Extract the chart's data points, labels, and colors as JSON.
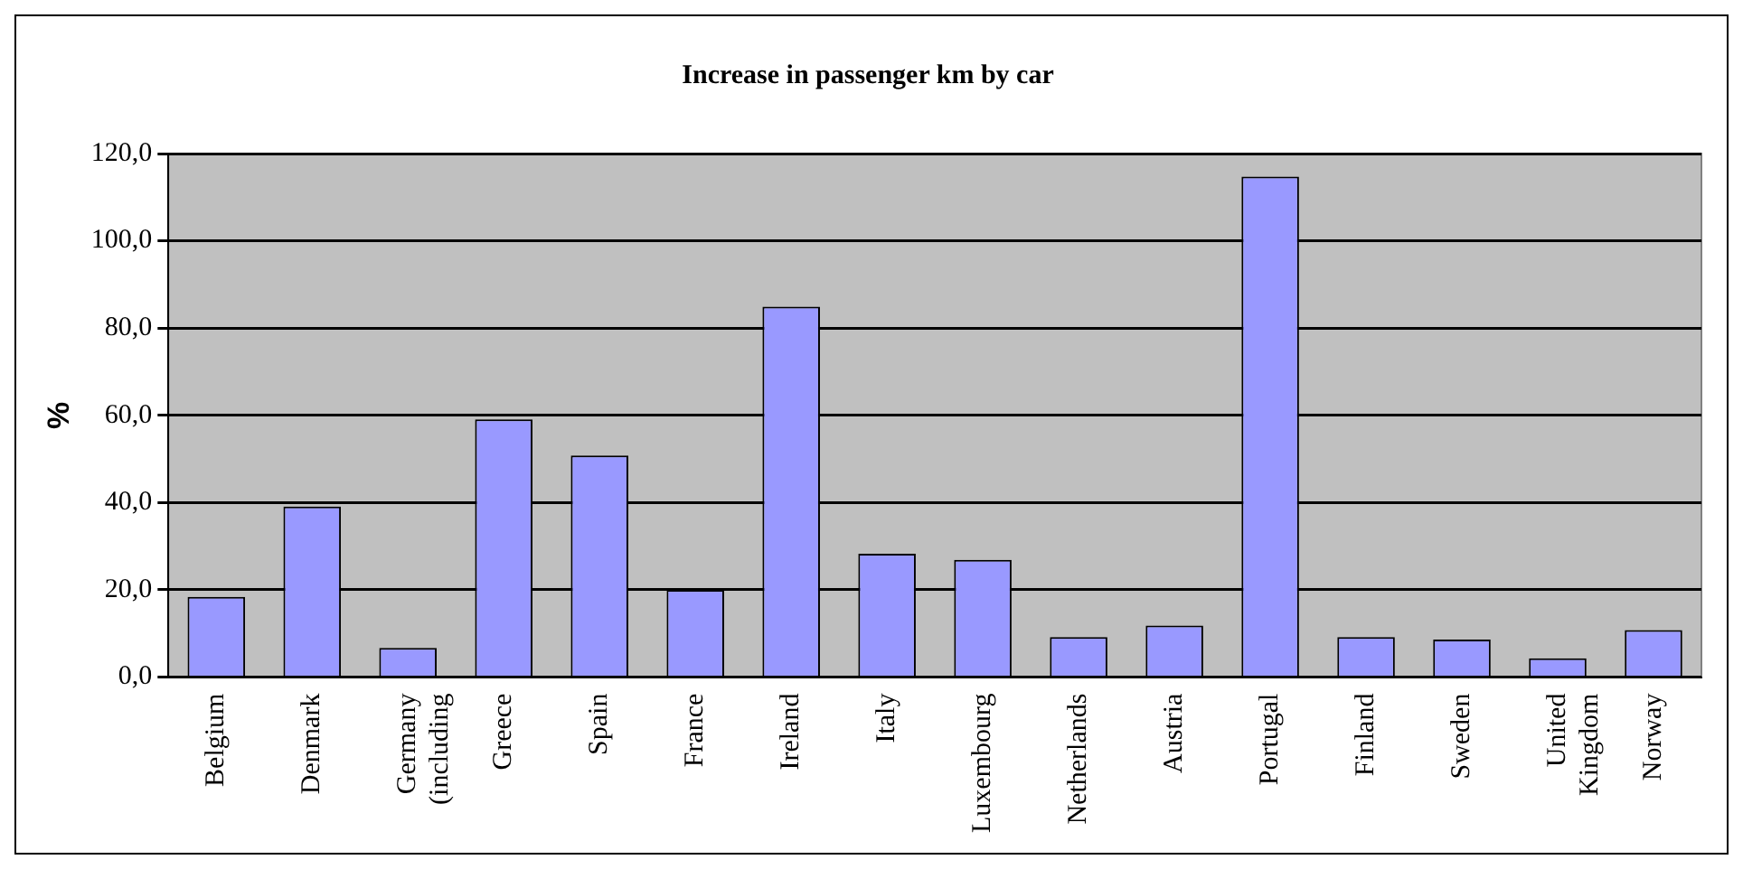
{
  "chart_data": {
    "type": "bar",
    "title": "Increase in passenger km by car",
    "ylabel": "%",
    "categories": [
      "Belgium",
      "Denmark",
      "Germany (including",
      "Greece",
      "Spain",
      "France",
      "Ireland",
      "Italy",
      "Luxembourg",
      "Netherlands",
      "Austria",
      "Portugal",
      "Finland",
      "Sweden",
      "United Kingdom",
      "Norway"
    ],
    "values": [
      18.4,
      39.1,
      6.7,
      59.1,
      50.8,
      20.0,
      84.9,
      28.3,
      26.9,
      9.2,
      11.8,
      114.7,
      9.2,
      8.6,
      4.3,
      10.8
    ],
    "color": "#9999ff",
    "ylim": [
      0,
      120
    ],
    "yticks": [
      {
        "value": 0,
        "label": "0,0"
      },
      {
        "value": 20,
        "label": "20,0"
      },
      {
        "value": 40,
        "label": "40,0"
      },
      {
        "value": 60,
        "label": "60,0"
      },
      {
        "value": 80,
        "label": "80,0"
      },
      {
        "value": 100,
        "label": "100,0"
      },
      {
        "value": 120,
        "label": "120,0"
      }
    ],
    "grid": "y",
    "legend": false
  }
}
